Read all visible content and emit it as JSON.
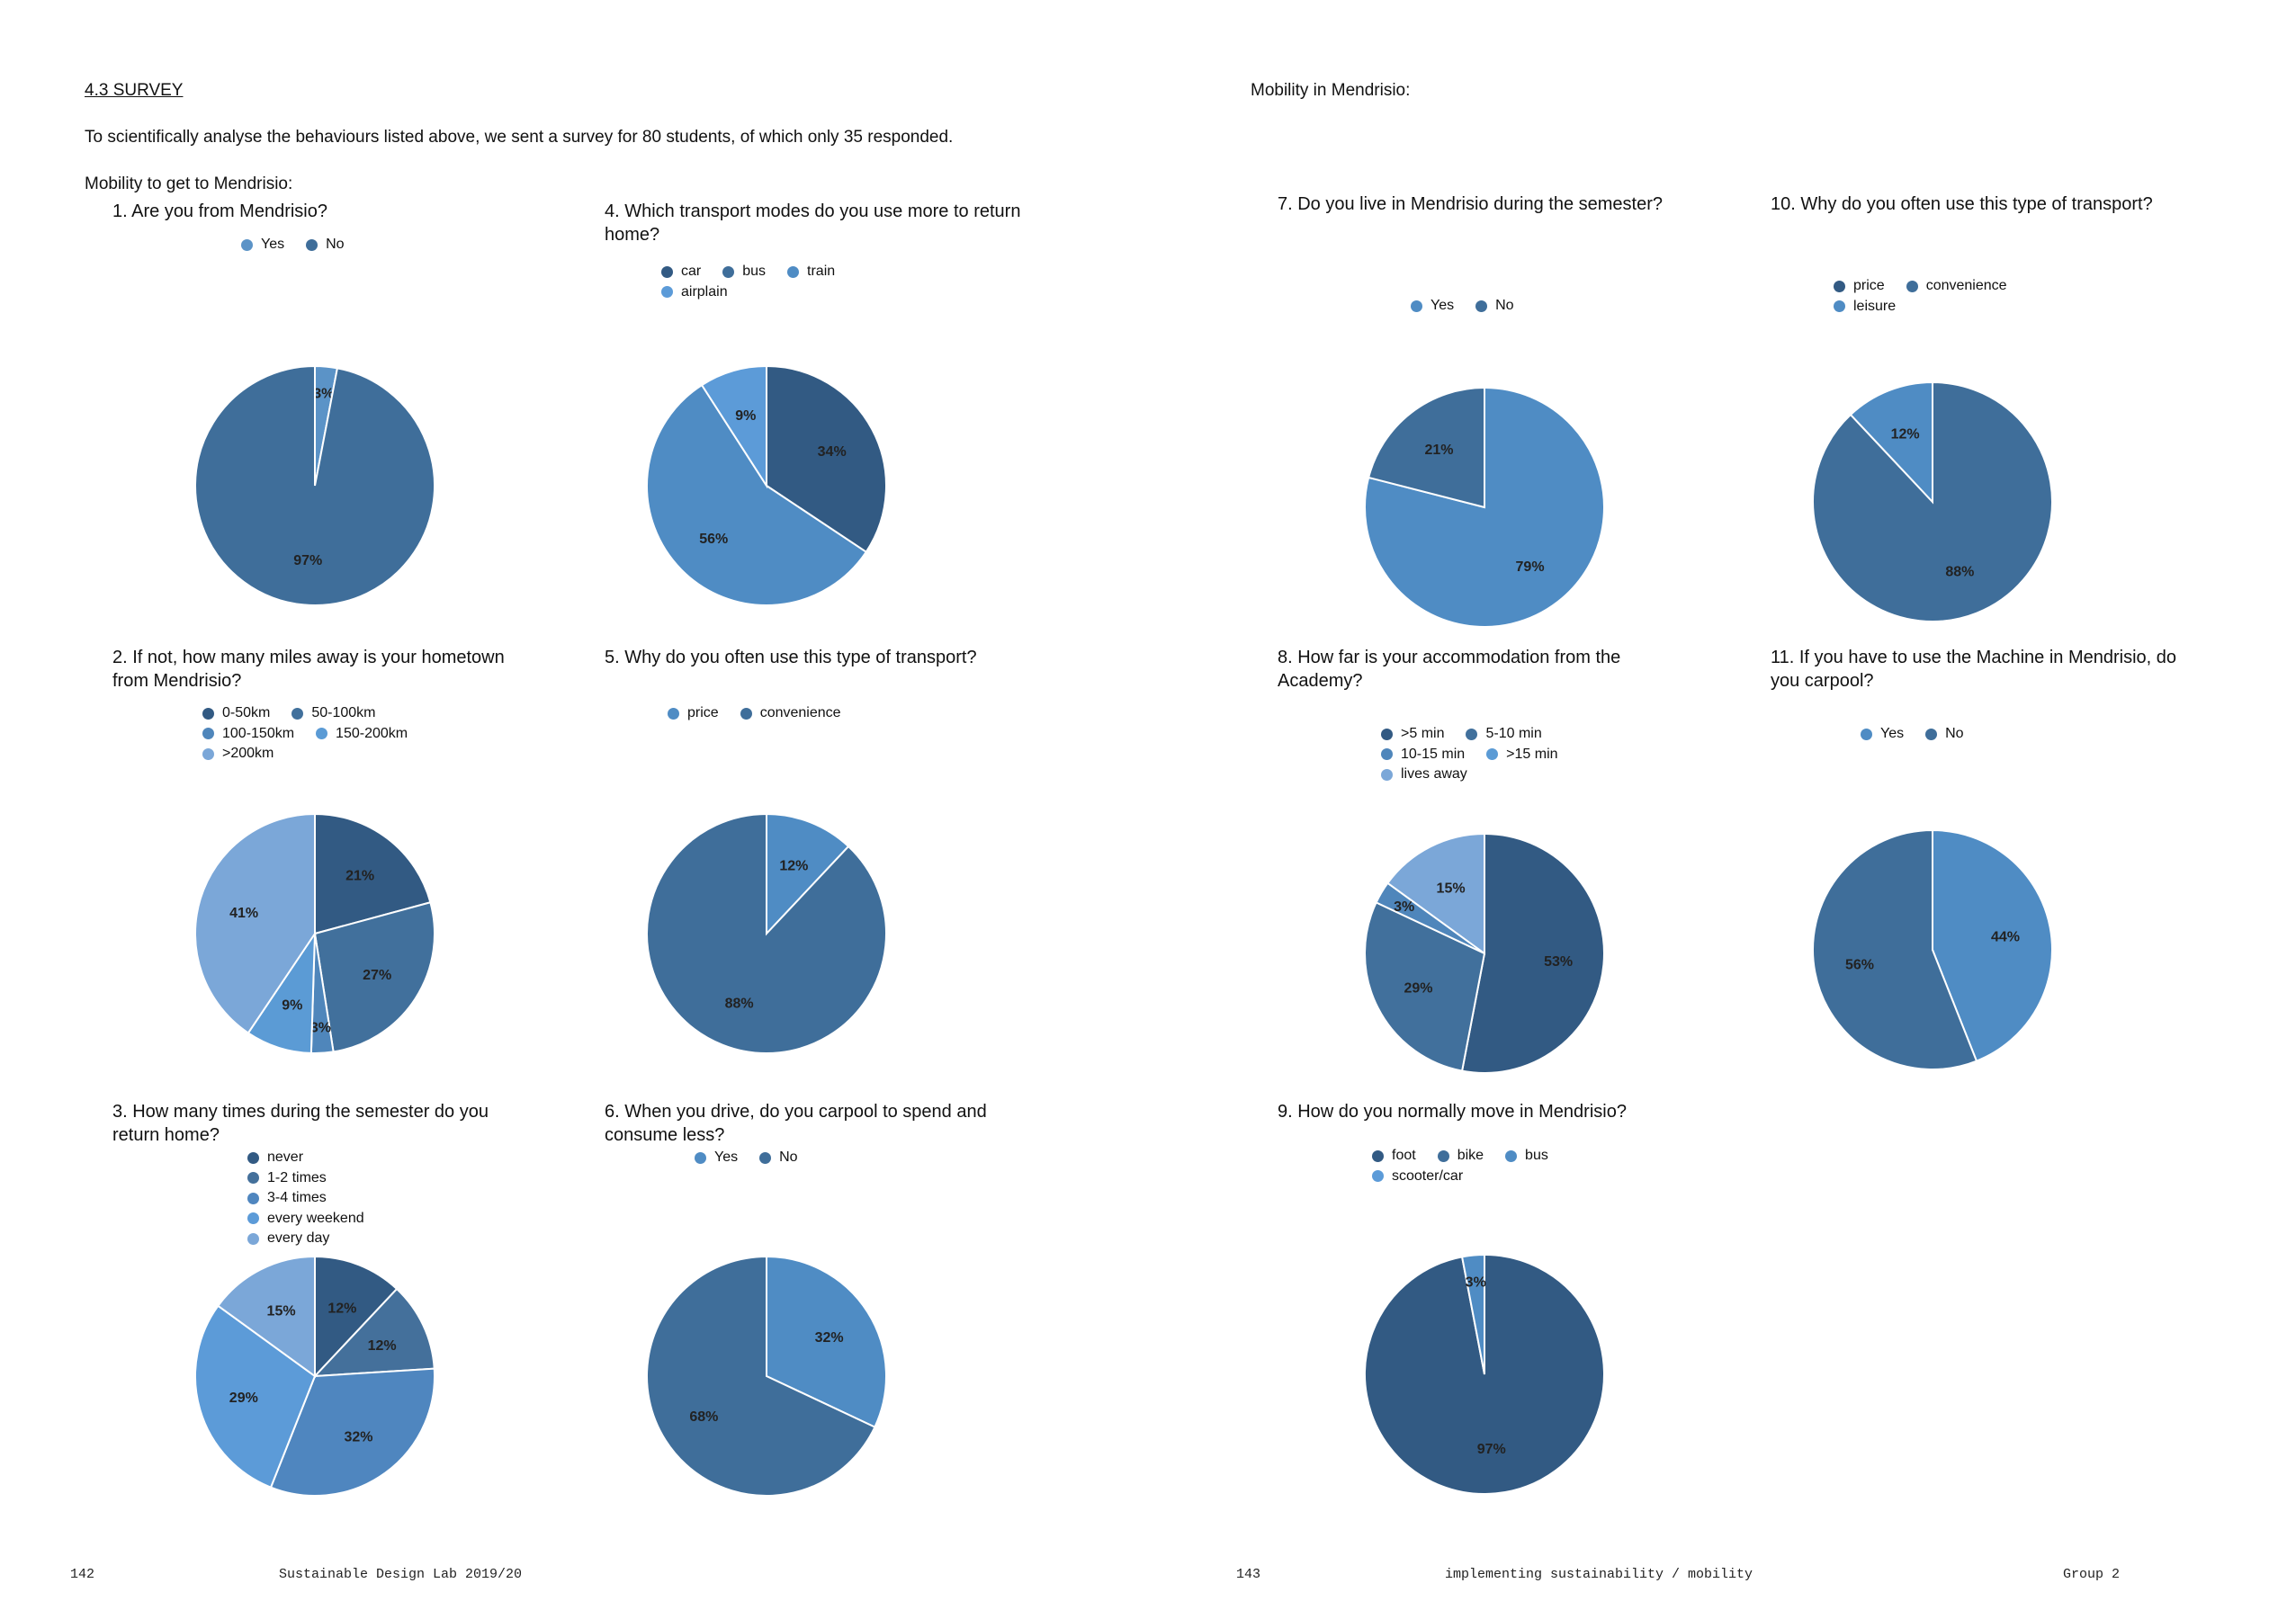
{
  "left": {
    "section_heading": "4.3 SURVEY",
    "intro": "To scientifically analyse the behaviours listed above, we sent a survey for 80 students, of which only 35 responded.",
    "subheading": "Mobility to get to Mendrisio:",
    "footer_page": "142",
    "footer_text": "Sustainable Design Lab 2019/20"
  },
  "right": {
    "subheading": "Mobility in Mendrisio:",
    "footer_page": "143",
    "footer_text": "implementing sustainability / mobility",
    "footer_group": "Group 2"
  },
  "chart_data": [
    {
      "id": "q1",
      "type": "pie",
      "title": "1.  Are you from Mendrisio?",
      "categories": [
        "Yes",
        "No"
      ],
      "values": [
        3,
        97
      ],
      "labels": [
        "3%",
        "97%"
      ],
      "colors": [
        "#5b93c7",
        "#3f6e9a"
      ]
    },
    {
      "id": "q2",
      "type": "pie",
      "title": "2.  If not, how many miles away is your hometown from Mendrisio?",
      "categories": [
        "0-50km",
        "50-100km",
        "100-150km",
        "150-200km",
        ">200km"
      ],
      "values": [
        21,
        27,
        3,
        9,
        41
      ],
      "labels": [
        "21%",
        "27%",
        "3%",
        "9%",
        "41%"
      ],
      "colors": [
        "#325a83",
        "#41709c",
        "#4f86bb",
        "#5b9bd5",
        "#7ba7d8"
      ]
    },
    {
      "id": "q3",
      "type": "pie",
      "title": "3.  How many times during the semester do you return home?",
      "categories": [
        "never",
        "1-2 times",
        "3-4 times",
        "every weekend",
        "every day"
      ],
      "values": [
        12,
        12,
        32,
        29,
        15
      ],
      "labels": [
        "12%",
        "12%",
        "32%",
        "29%",
        "15%"
      ],
      "colors": [
        "#325a83",
        "#44709b",
        "#4f86bf",
        "#5c9bd8",
        "#7ba7d8"
      ]
    },
    {
      "id": "q4",
      "type": "pie",
      "title": "4.  Which transport modes do you use more to return home?",
      "categories": [
        "car",
        "bus",
        "train",
        "airplain"
      ],
      "values": [
        34,
        0,
        56,
        9
      ],
      "labels": [
        "34%",
        "",
        "56%",
        "9%"
      ],
      "colors": [
        "#325a83",
        "#3f6e9a",
        "#4f8cc4",
        "#5c9bd8"
      ]
    },
    {
      "id": "q5",
      "type": "pie",
      "title": "5.  Why do you often use this type of transport?",
      "categories": [
        "price",
        "convenience"
      ],
      "values": [
        12,
        88
      ],
      "labels": [
        "12%",
        "88%"
      ],
      "colors": [
        "#4f8cc4",
        "#3f6e9a"
      ]
    },
    {
      "id": "q6",
      "type": "pie",
      "title": "6.  When you drive, do you carpool to spend and consume less?",
      "categories": [
        "Yes",
        "No"
      ],
      "values": [
        32,
        68
      ],
      "labels": [
        "32%",
        "68%"
      ],
      "colors": [
        "#4f8cc4",
        "#3f6e9a"
      ]
    },
    {
      "id": "q7",
      "type": "pie",
      "title": "7. Do you live in Mendrisio during the semester?",
      "categories": [
        "Yes",
        "No"
      ],
      "values": [
        79,
        21
      ],
      "labels": [
        "79%",
        "21%"
      ],
      "colors": [
        "#4f8cc4",
        "#3f6e9a"
      ]
    },
    {
      "id": "q8",
      "type": "pie",
      "title": "8. How far is your accommodation from the Academy?",
      "categories": [
        ">5 min",
        "5-10 min",
        "10-15 min",
        ">15 min",
        "lives away"
      ],
      "values": [
        53,
        29,
        3,
        0,
        15
      ],
      "labels": [
        "53%",
        "29%",
        "3%",
        "",
        "15%"
      ],
      "colors": [
        "#325a83",
        "#41709c",
        "#4f86bb",
        "#5b9bd5",
        "#7ba7d8"
      ]
    },
    {
      "id": "q9",
      "type": "pie",
      "title": "9.  How do you normally move in Mendrisio?",
      "categories": [
        "foot",
        "bike",
        "bus",
        "scooter/car"
      ],
      "values": [
        97,
        0,
        3,
        0
      ],
      "labels": [
        "97%",
        "",
        "3%",
        ""
      ],
      "colors": [
        "#325a83",
        "#3f6e9a",
        "#4f8cc4",
        "#5c9bd8"
      ]
    },
    {
      "id": "q10",
      "type": "pie",
      "title": "10.  Why do you often use this type of transport?",
      "categories": [
        "price",
        "convenience",
        "leisure"
      ],
      "values": [
        0,
        88,
        12
      ],
      "labels": [
        "",
        "88%",
        "12%"
      ],
      "colors": [
        "#325a83",
        "#3f6e9a",
        "#4f8cc4"
      ]
    },
    {
      "id": "q11",
      "type": "pie",
      "title": "11.  If you have to use the Machine in Mendrisio, do you carpool?",
      "categories": [
        "Yes",
        "No"
      ],
      "values": [
        44,
        56
      ],
      "labels": [
        "44%",
        "56%"
      ],
      "colors": [
        "#4f8cc4",
        "#3f6e9a"
      ]
    }
  ]
}
